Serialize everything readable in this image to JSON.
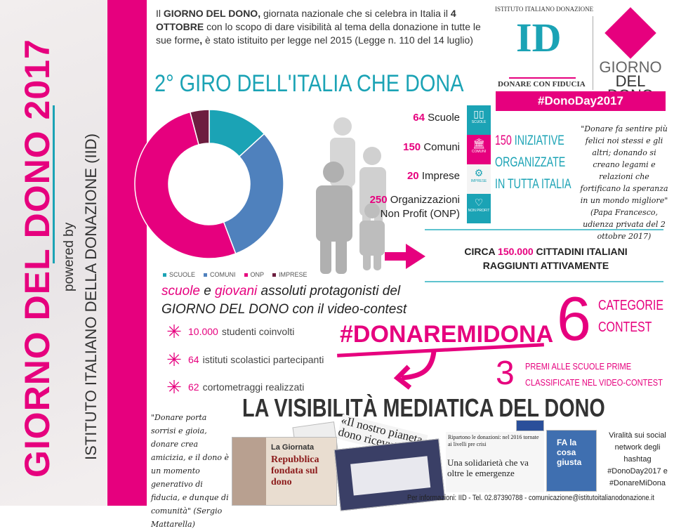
{
  "side": {
    "title": "GIORNO DEL DONO 2017",
    "powered": "powered by",
    "institute": "ISTITUTO ITALIANO DELLA DONAZIONE (IID)"
  },
  "intro": {
    "p1": "Il ",
    "b1": "GIORNO DEL DONO,",
    "p2": " giornata nazionale che si celebra in Italia il ",
    "b2": "4 OTTOBRE",
    "p3": " con lo scopo di dare visibilità al tema della donazione in tutte le sue forme",
    "b3": ",",
    "p4": " è stato istituito per legge nel 2015 (Legge n. 110 del 14 luglio)"
  },
  "headline": "2° GIRO DELL'ITALIA CHE DONA",
  "logo": {
    "arc": "ISTITUTO ITALIANO DONAZIONE",
    "mark": "ID",
    "tagline": "DONARE CON FIDUCIA",
    "brand1": "GIORNO",
    "brand2": "DEL DONO",
    "hashtag": "#DonoDay2017"
  },
  "chart_data": {
    "type": "pie",
    "variant": "donut",
    "categories": [
      "SCUOLE",
      "COMUNI",
      "ONP",
      "IMPRESE"
    ],
    "values": [
      64,
      150,
      250,
      20
    ],
    "colors": [
      "#1ba3b5",
      "#4f81bd",
      "#e6007e",
      "#6d1d3f"
    ],
    "legend": "bottom"
  },
  "categories": [
    {
      "n": "64",
      "label": "Scuole",
      "tile": "SCUOLE",
      "icon": "book-icon",
      "color": "#1ba3b5"
    },
    {
      "n": "150",
      "label": "Comuni",
      "tile": "COMUNI",
      "icon": "building-icon",
      "color": "#e6007e"
    },
    {
      "n": "20",
      "label": "Imprese",
      "tile": "IMPRESE",
      "icon": "gears-icon",
      "color": "#f4f4f4"
    },
    {
      "n": "250",
      "label": "Organizzazioni",
      "label2": "Non Profit (ONP)",
      "tile": "NON PROFIT",
      "icon": "heart-icon",
      "color": "#1ba3b5"
    }
  ],
  "tile_prefix": "DONODAY",
  "iniziative": {
    "n": "150",
    "l1": " INIZIATIVE",
    "l2": "ORGANIZZATE",
    "l3": "IN TUTTA ITALIA"
  },
  "quote1": "\"Donare fa sentire più felici noi stessi e gli altri; donando si creano legami e relazioni che fortificano la speranza in un mondo migliore\" (Papa Francesco, udienza privata del 2 ottobre 2017)",
  "circa": {
    "a": "CIRCA ",
    "n": "150.000",
    "b": " CITTADINI ITALIANI",
    "c": "RAGGIUNTI ATTIVAMENTE"
  },
  "protag": {
    "w1": "scuole",
    "w2": " e ",
    "w3": "giovani",
    "w4": " assoluti protagonisti del",
    "l2": "GIORNO DEL DONO con il video-contest"
  },
  "stats": [
    {
      "n": "10.000",
      "t": "studenti coinvolti"
    },
    {
      "n": "64",
      "t": "istituti scolastici partecipanti"
    },
    {
      "n": "62",
      "t": "cortometraggi realizzati"
    }
  ],
  "contest": {
    "hashtag": "#DONAREMIDONA",
    "six": "6",
    "cat1": "CATEGORIE",
    "cat2": "CONTEST",
    "three": "3",
    "premi1": "PREMI ALLE SCUOLE PRIME",
    "premi2": "CLASSIFICATE NEL VIDEO-CONTEST"
  },
  "visibility": "LA VISIBILITÀ MEDIATICA DEL DONO",
  "quote2": "\"Donare porta sorrisi e gioia, donare crea amicizia, e il dono è un momento generativo di fiducia, e dunque di comunità\" (Sergio Mattarella)",
  "clips": {
    "c1a": "La Giornata",
    "c1b": "Repubblica fondata sul dono",
    "c2": "«Il nostro pianeta dono ricevuto da con...",
    "c3a": "Ripartono le donazioni: nel 2016 tornate ai livelli pre crisi",
    "c3b": "Una solidarietà che va oltre le emergenze",
    "c4": "FA la cosa giusta"
  },
  "viral": "Viralità sui social network degli hashtag #DonoDay2017 e #DonareMiDona",
  "footer": "Per informazioni: IID - Tel. 02.87390788 - comunicazione@istitutoitalianodonazione.it"
}
